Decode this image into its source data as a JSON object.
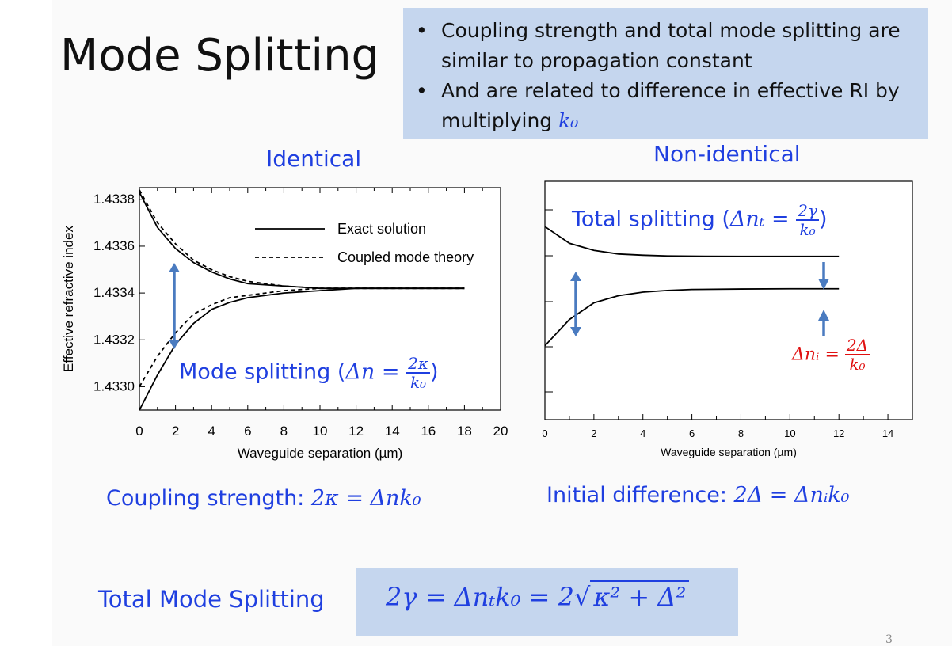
{
  "slide": {
    "title": "Mode Splitting",
    "page_number": "3"
  },
  "notes": {
    "bullet1": "Coupling strength and total mode splitting are similar to propagation constant",
    "bullet2_text": "And are related to difference in effective RI by multiplying",
    "bullet2_math": "k₀"
  },
  "left_panel": {
    "subtitle": "Identical",
    "annotation": "Mode splitting (Δn = 2κ/k₀)",
    "annotation_prefix": "Mode splitting (",
    "annotation_math": "Δn =",
    "annotation_num": "2κ",
    "annotation_den": "k₀",
    "annotation_suffix": ")",
    "equation_prefix": "Coupling strength: ",
    "equation_math": "2κ = Δnk₀"
  },
  "right_panel": {
    "subtitle": "Non-identical",
    "annotation_prefix": "Total splitting (",
    "annotation_math": "Δnₜ =",
    "annotation_num": "2γ",
    "annotation_den": "k₀",
    "annotation_suffix": ")",
    "red_math": "Δnᵢ =",
    "red_num": "2Δ",
    "red_den": "k₀",
    "equation_prefix": "Initial difference: ",
    "equation_math": "2Δ = Δnᵢk₀"
  },
  "total": {
    "label": "Total Mode Splitting",
    "equation": "2γ = Δnₜk₀ = 2√(κ² + Δ²)",
    "eq_left": "2γ = Δnₜk₀ = 2",
    "eq_radicand": "κ² + Δ²"
  },
  "colors": {
    "accent_blue": "#1f3fe0",
    "arrow_blue": "#4a7bc0",
    "box_blue": "#c5d6ee",
    "red": "#e01010"
  },
  "chart_data": [
    {
      "type": "line",
      "xlabel": "Waveguide separation (µm)",
      "ylabel": "Effective refractive index",
      "xlim": [
        0,
        20
      ],
      "ylim": [
        1.4329,
        1.43385
      ],
      "x_ticks": [
        "0",
        "2",
        "4",
        "6",
        "8",
        "10",
        "12",
        "14",
        "16",
        "18",
        "20"
      ],
      "y_ticks": [
        "1.4330",
        "1.4332",
        "1.4334",
        "1.4336",
        "1.4338"
      ],
      "legend": [
        "Exact solution",
        "Coupled mode theory"
      ],
      "legend_position": "top-right",
      "series": [
        {
          "name": "Exact solution",
          "style": "solid",
          "x": [
            0,
            1,
            2,
            3,
            4,
            5,
            6,
            8,
            10,
            12,
            14,
            16,
            18
          ],
          "y": [
            1.43383,
            1.43368,
            1.43359,
            1.43353,
            1.43349,
            1.43346,
            1.43344,
            1.43343,
            1.43342,
            1.43342,
            1.43342,
            1.43342,
            1.43342
          ]
        },
        {
          "name": "Exact solution",
          "style": "solid",
          "x": [
            0,
            1,
            2,
            3,
            4,
            5,
            6,
            8,
            10,
            12,
            14,
            16,
            18
          ],
          "y": [
            1.4329,
            1.43305,
            1.43318,
            1.43327,
            1.43333,
            1.43336,
            1.43338,
            1.4334,
            1.43341,
            1.43342,
            1.43342,
            1.43342,
            1.43342
          ]
        },
        {
          "name": "Coupled mode theory",
          "style": "dashed",
          "x": [
            0,
            1,
            2,
            3,
            4,
            5,
            6,
            8,
            10,
            12,
            14,
            16,
            18
          ],
          "y": [
            1.43384,
            1.4337,
            1.43361,
            1.43354,
            1.4335,
            1.43347,
            1.43345,
            1.43343,
            1.43342,
            1.43342,
            1.43342,
            1.43342,
            1.43342
          ]
        },
        {
          "name": "Coupled mode theory",
          "style": "dashed",
          "x": [
            0,
            1,
            2,
            3,
            4,
            5,
            6,
            8,
            10,
            12,
            14,
            16,
            18
          ],
          "y": [
            1.433,
            1.43313,
            1.43323,
            1.43331,
            1.43335,
            1.43338,
            1.43339,
            1.43341,
            1.43342,
            1.43342,
            1.43342,
            1.43342,
            1.43342
          ]
        }
      ]
    },
    {
      "type": "line",
      "xlabel": "Waveguide separation (µm)",
      "ylabel": "",
      "xlim": [
        0,
        15
      ],
      "ylim": [
        0,
        1
      ],
      "x_ticks": [
        "0",
        "2",
        "4",
        "6",
        "8",
        "10",
        "12",
        "14"
      ],
      "y_ticks": [],
      "series": [
        {
          "style": "solid",
          "x": [
            0,
            1,
            2,
            3,
            4,
            5,
            6,
            8,
            10,
            12
          ],
          "y": [
            0.81,
            0.74,
            0.71,
            0.695,
            0.69,
            0.687,
            0.686,
            0.685,
            0.685,
            0.685
          ]
        },
        {
          "style": "solid",
          "x": [
            0,
            1,
            2,
            3,
            4,
            5,
            6,
            8,
            10,
            12
          ],
          "y": [
            0.31,
            0.42,
            0.49,
            0.52,
            0.535,
            0.542,
            0.546,
            0.548,
            0.549,
            0.549
          ]
        }
      ]
    }
  ]
}
